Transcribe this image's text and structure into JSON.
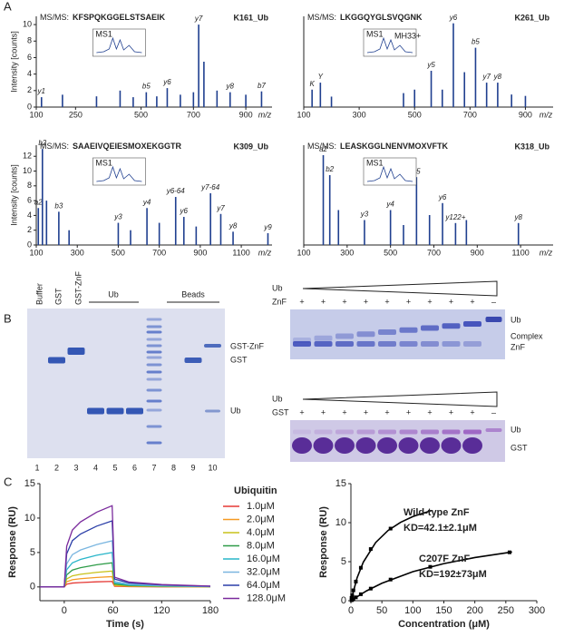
{
  "panels": [
    "A",
    "B",
    "C"
  ],
  "chart_data": [
    {
      "type": "stem",
      "title_prefix": "MS/MS:",
      "peptide": "KFSPQKGGELSTSAEIK",
      "label": "K161_Ub",
      "inset_label": "MS1",
      "color": "#1f3f8f",
      "x": [
        120,
        200,
        330,
        420,
        470,
        520,
        560,
        600,
        650,
        700,
        720,
        740,
        790,
        840,
        900,
        960
      ],
      "values": [
        1.2,
        1.5,
        1.3,
        2.0,
        1.2,
        1.8,
        1.3,
        2.3,
        1.5,
        1.8,
        10,
        5.5,
        2.0,
        1.8,
        1.5,
        1.9
      ],
      "peak_labels": [
        "y1",
        null,
        null,
        null,
        null,
        "b5",
        null,
        "y6",
        null,
        null,
        "y7",
        null,
        null,
        "y8",
        null,
        "b7"
      ],
      "xlim": [
        100,
        1000
      ],
      "xticks": [
        100,
        250,
        500,
        700,
        900
      ],
      "ylim": [
        0,
        11
      ],
      "yticks": [
        0,
        2,
        4,
        6,
        8,
        10
      ],
      "xlabel": "m/z",
      "ylabel": "Intensity [counts]"
    },
    {
      "type": "stem",
      "title_prefix": "MS/MS:",
      "peptide": "LKGGQYGLSVQGNK",
      "label": "K261_Ub",
      "inset_label": "MS1",
      "inset_note": "MH33+",
      "color": "#1f3f8f",
      "x": [
        130,
        160,
        200,
        460,
        500,
        560,
        600,
        640,
        680,
        720,
        760,
        800,
        850,
        900
      ],
      "values": [
        2.5,
        3.5,
        1.5,
        2.0,
        2.5,
        5.2,
        2.5,
        12,
        5.0,
        8.5,
        3.5,
        3.5,
        1.8,
        1.6
      ],
      "peak_labels": [
        "K",
        "Y",
        null,
        null,
        null,
        "y5",
        null,
        "y6",
        null,
        "b5",
        "y7",
        "y8",
        null,
        null
      ],
      "xlim": [
        100,
        1000
      ],
      "xticks": [
        100,
        300,
        500,
        700,
        900
      ],
      "ylim": [
        0,
        13
      ],
      "xlabel": "m/z"
    },
    {
      "type": "stem",
      "title_prefix": "MS/MS:",
      "peptide": "SAAEIVQEIESMOXEKGGTR",
      "label": "K309_Ub",
      "inset_label": "MS1",
      "color": "#1f3f8f",
      "x": [
        110,
        130,
        150,
        210,
        260,
        500,
        560,
        640,
        700,
        780,
        820,
        880,
        950,
        1000,
        1060,
        1230
      ],
      "values": [
        5,
        13,
        6,
        4.5,
        2,
        3,
        2,
        5,
        3,
        6.5,
        3.8,
        2.5,
        7,
        4.2,
        1.8,
        1.6
      ],
      "peak_labels": [
        "a2",
        "b2",
        null,
        "b3",
        null,
        "y3",
        null,
        "y4",
        null,
        "y6-64",
        "y6",
        null,
        "y7-64",
        "y7",
        "y8",
        "y9"
      ],
      "xlim": [
        100,
        1250
      ],
      "xticks": [
        100,
        300,
        500,
        700,
        900,
        1100
      ],
      "ylim": [
        0,
        13.5
      ],
      "yticks": [
        0,
        2,
        4,
        6,
        8,
        10,
        12
      ],
      "xlabel": "m/z",
      "ylabel": "Intensity [counts]"
    },
    {
      "type": "stem",
      "title_prefix": "MS/MS:",
      "peptide": "LEASKGGLNENVMOXVFTK",
      "label": "K318_Ub",
      "inset_label": "MS1",
      "color": "#1f3f8f",
      "x": [
        190,
        220,
        260,
        380,
        500,
        560,
        620,
        680,
        740,
        800,
        850,
        1090
      ],
      "values": [
        9,
        7,
        3.5,
        2.5,
        3.5,
        2,
        6.8,
        3,
        4.2,
        2.2,
        2.5,
        2.2
      ],
      "peak_labels": [
        "a2",
        "b2",
        null,
        "y3",
        "y4",
        null,
        "y5",
        null,
        "y6",
        "y122+",
        null,
        "y8"
      ],
      "xlim": [
        100,
        1250
      ],
      "xticks": [
        100,
        300,
        500,
        700,
        900,
        1100
      ],
      "ylim": [
        0,
        10
      ],
      "xlabel": "m/z"
    },
    {
      "type": "line",
      "legend_title": "Ubiquitin",
      "xlabel": "Time (s)",
      "ylabel": "Response (RU)",
      "x": [
        -30,
        0,
        3,
        10,
        20,
        40,
        59,
        62,
        80,
        120,
        180
      ],
      "series": [
        {
          "name": "1.0μM",
          "color": "#e53935",
          "values": [
            0,
            0,
            0.4,
            0.56,
            0.64,
            0.74,
            0.8,
            0.1,
            0.05,
            0.02,
            0.01
          ]
        },
        {
          "name": "2.0μM",
          "color": "#f59a23",
          "values": [
            0,
            0,
            0.75,
            1.05,
            1.2,
            1.38,
            1.5,
            0.18,
            0.09,
            0.05,
            0.02
          ]
        },
        {
          "name": "4.0μM",
          "color": "#c9c21a",
          "values": [
            0,
            0,
            1.15,
            1.61,
            1.84,
            2.12,
            2.3,
            0.28,
            0.14,
            0.07,
            0.02
          ]
        },
        {
          "name": "8.0μM",
          "color": "#2e9c48",
          "values": [
            0,
            0,
            1.75,
            2.45,
            2.8,
            3.22,
            3.5,
            0.42,
            0.21,
            0.11,
            0.04
          ]
        },
        {
          "name": "16.0μM",
          "color": "#28b5c9",
          "values": [
            0,
            0,
            2.5,
            3.5,
            4,
            4.6,
            5,
            0.6,
            0.3,
            0.15,
            0.05
          ]
        },
        {
          "name": "32.0μM",
          "color": "#7ab6e0",
          "values": [
            0,
            0,
            3.35,
            4.69,
            5.36,
            6.16,
            6.7,
            0.8,
            0.4,
            0.2,
            0.07
          ]
        },
        {
          "name": "64.0μM",
          "color": "#2b3fa8",
          "values": [
            0,
            0,
            4.8,
            6.72,
            7.68,
            8.83,
            9.6,
            1.15,
            0.58,
            0.29,
            0.1
          ]
        },
        {
          "name": "128.0μM",
          "color": "#7a2a9c",
          "values": [
            0,
            0,
            5.9,
            8.26,
            9.44,
            10.86,
            11.8,
            1.42,
            0.71,
            0.35,
            0.12
          ]
        }
      ],
      "xlim": [
        -30,
        180
      ],
      "xticks": [
        0,
        60,
        120,
        180
      ],
      "ylim": [
        -2,
        15
      ],
      "yticks": [
        0,
        5,
        10,
        15
      ]
    },
    {
      "type": "scatter",
      "xlabel": "Concentration (μM)",
      "ylabel": "Response (RU)",
      "series": [
        {
          "style": "points",
          "color": "#000000",
          "x": [
            1,
            2,
            4,
            8,
            16,
            32,
            64
          ],
          "values": [
            0.36,
            0.7,
            1.33,
            2.45,
            4.22,
            6.62,
            9.24
          ]
        },
        {
          "style": "line",
          "color": "#000000",
          "x": [
            0,
            10,
            20,
            40,
            60,
            80,
            100,
            130
          ],
          "values": [
            0,
            2.94,
            4.94,
            7.46,
            9.0,
            10.04,
            10.78,
            11.56
          ]
        },
        {
          "style": "points",
          "color": "#000000",
          "x": [
            1,
            2,
            4,
            8,
            16,
            32,
            64,
            128,
            256
          ],
          "values": [
            0.06,
            0.11,
            0.22,
            0.43,
            0.83,
            1.55,
            2.71,
            4.34,
            6.2
          ]
        },
        {
          "style": "line",
          "color": "#000000",
          "x": [
            0,
            25,
            50,
            100,
            150,
            200,
            260
          ],
          "values": [
            0,
            1.25,
            2.24,
            3.72,
            4.75,
            5.53,
            6.24
          ]
        }
      ],
      "annotations": [
        "Wild-type ZnF",
        "KD=42.1±2.1μM",
        "C207F ZnF",
        "KD=192±73μM"
      ],
      "xlim": [
        0,
        300
      ],
      "xticks": [
        0,
        50,
        100,
        150,
        200,
        250,
        300
      ],
      "ylim": [
        0,
        15
      ],
      "yticks": [
        0,
        5,
        10,
        15
      ]
    }
  ],
  "gel_pulldown": {
    "lane_labels": [
      "Buffer",
      "GST",
      "GST-ZnF"
    ],
    "group_labels": [
      "Ub",
      "Beads"
    ],
    "lane_numbers": [
      "1",
      "2",
      "3",
      "4",
      "5",
      "6",
      "7",
      "8",
      "9",
      "10"
    ],
    "band_labels": [
      "GST-ZnF",
      "GST",
      "Ub"
    ]
  },
  "gel_shift": [
    {
      "titrant": "Ub",
      "partner": "ZnF",
      "lane_marks": [
        "+",
        "+",
        "+",
        "+",
        "+",
        "+",
        "+",
        "+",
        "+",
        "–"
      ],
      "band_labels": [
        "Ub",
        "Complex",
        "ZnF"
      ]
    },
    {
      "titrant": "Ub",
      "partner": "GST",
      "lane_marks": [
        "+",
        "+",
        "+",
        "+",
        "+",
        "+",
        "+",
        "+",
        "+",
        "–"
      ],
      "band_labels": [
        "Ub",
        "GST"
      ]
    }
  ]
}
